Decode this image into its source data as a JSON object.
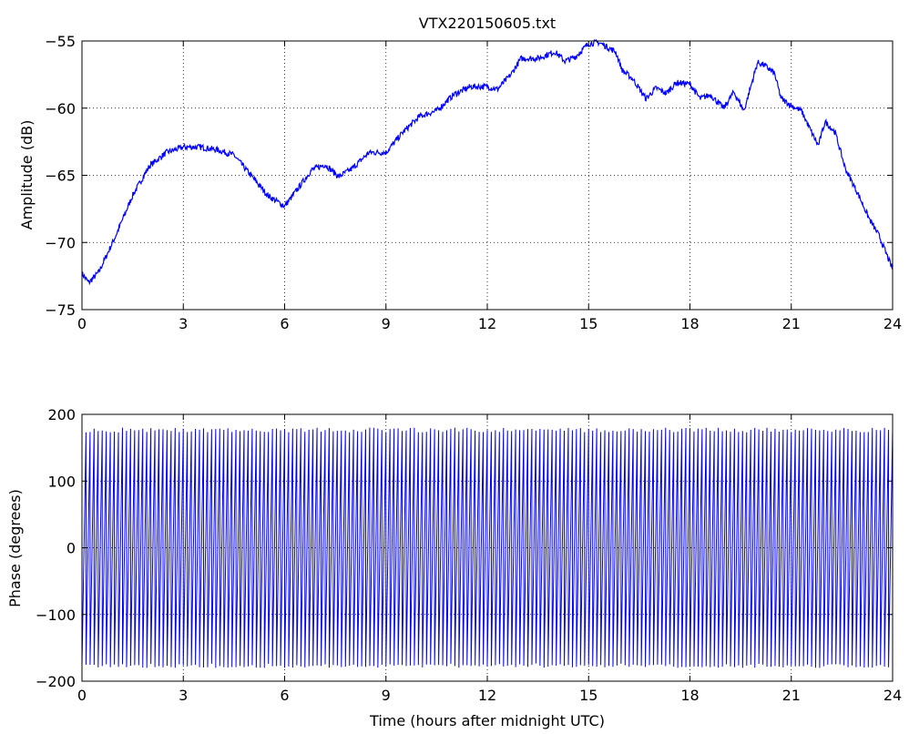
{
  "chart_data": [
    {
      "type": "line",
      "title": "VTX220150605.txt",
      "xlabel": "",
      "ylabel": "Amplitude (dB)",
      "xlim": [
        0,
        24
      ],
      "ylim": [
        -75,
        -55
      ],
      "xticks": [
        0,
        3,
        6,
        9,
        12,
        15,
        18,
        21,
        24
      ],
      "yticks": [
        -75,
        -70,
        -65,
        -60,
        -55
      ],
      "grid": true,
      "line_color": "#0000ff",
      "x": [
        0,
        0.2,
        0.5,
        1,
        1.5,
        2,
        2.5,
        3,
        3.5,
        4,
        4.5,
        5,
        5.5,
        6,
        6.3,
        6.8,
        7.2,
        7.6,
        8,
        8.5,
        9,
        9.5,
        10,
        10.5,
        11,
        11.5,
        12,
        12.3,
        12.7,
        13,
        13.5,
        14,
        14.3,
        14.6,
        15,
        15.3,
        15.8,
        16,
        16.3,
        16.7,
        17,
        17.3,
        17.6,
        18,
        18.3,
        18.6,
        19,
        19.3,
        19.6,
        20,
        20.2,
        20.5,
        20.7,
        21,
        21.3,
        21.6,
        21.8,
        22,
        22.3,
        22.6,
        23,
        23.3,
        23.6,
        24
      ],
      "y": [
        -72.3,
        -73,
        -72.2,
        -69.5,
        -66.5,
        -64.3,
        -63.3,
        -62.9,
        -62.9,
        -63.1,
        -63.5,
        -65,
        -66.5,
        -67.3,
        -66.3,
        -64.6,
        -64.2,
        -65.1,
        -64.5,
        -63.3,
        -63.3,
        -61.8,
        -60.6,
        -60.2,
        -59,
        -58.4,
        -58.4,
        -58.6,
        -57.5,
        -56.3,
        -56.3,
        -55.8,
        -56.5,
        -56.2,
        -55.2,
        -55.1,
        -55.8,
        -57.2,
        -57.8,
        -59.3,
        -58.5,
        -58.9,
        -58.1,
        -58.2,
        -59.3,
        -59,
        -60,
        -58.8,
        -60.2,
        -56.6,
        -56.8,
        -57.4,
        -59.3,
        -59.8,
        -60.2,
        -61.8,
        -62.8,
        -61,
        -61.8,
        -64.5,
        -66.5,
        -68.2,
        -69.5,
        -72
      ]
    },
    {
      "type": "line",
      "title": "",
      "xlabel": "Time (hours after midnight UTC)",
      "ylabel": "Phase (degrees)",
      "xlim": [
        0,
        24
      ],
      "ylim": [
        -200,
        200
      ],
      "xticks": [
        0,
        3,
        6,
        9,
        12,
        15,
        18,
        21,
        24
      ],
      "yticks": [
        -200,
        -100,
        0,
        100,
        200
      ],
      "grid": true,
      "line_color": "#0000ff",
      "wrap_cycles": 200,
      "phase_range": [
        -180,
        180
      ]
    }
  ]
}
